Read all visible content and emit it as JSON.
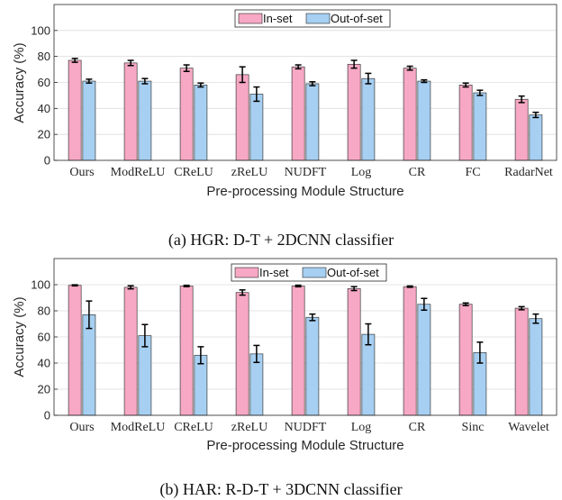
{
  "chart_data": [
    {
      "type": "bar",
      "caption": "(a) HGR: D-T + 2DCNN classifier",
      "xlabel": "Pre-processing Module Structure",
      "ylabel": "Accuracy (%)",
      "ylim": [
        0,
        120
      ],
      "yticks": [
        0,
        20,
        40,
        60,
        80,
        100
      ],
      "grid": true,
      "legend_position": "top-right",
      "categories": [
        "Ours",
        "ModReLU",
        "CReLU",
        "zReLU",
        "NUDFT",
        "Log",
        "CR",
        "FC",
        "RadarNet"
      ],
      "series": [
        {
          "name": "In-set",
          "color": "#f7a8c4",
          "values": [
            77,
            75,
            71,
            66,
            72,
            74,
            71,
            58,
            47
          ],
          "errors": [
            1.5,
            2,
            2.5,
            6,
            1.5,
            3,
            1.5,
            1.5,
            2.5
          ]
        },
        {
          "name": "Out-of-set",
          "color": "#a6cff2",
          "values": [
            61,
            61,
            58,
            51,
            59,
            63,
            61,
            52,
            35
          ],
          "errors": [
            1.5,
            2,
            1.5,
            5.5,
            1.5,
            4,
            1,
            2,
            2
          ]
        }
      ]
    },
    {
      "type": "bar",
      "caption": "(b) HAR: R-D-T + 3DCNN classifier",
      "xlabel": "Pre-processing Module Structure",
      "ylabel": "Accuracy (%)",
      "ylim": [
        0,
        120
      ],
      "yticks": [
        0,
        20,
        40,
        60,
        80,
        100
      ],
      "grid": true,
      "legend_position": "top-center",
      "categories": [
        "Ours",
        "ModReLU",
        "CReLU",
        "zReLU",
        "NUDFT",
        "Log",
        "CR",
        "Sinc",
        "Wavelet"
      ],
      "series": [
        {
          "name": "In-set",
          "color": "#f7a8c4",
          "values": [
            99.5,
            98,
            99,
            94,
            99,
            97,
            98.5,
            85,
            82
          ],
          "errors": [
            0.4,
            1.2,
            0.5,
            2,
            0.6,
            1.5,
            0.5,
            1,
            1.2
          ]
        },
        {
          "name": "Out-of-set",
          "color": "#a6cff2",
          "values": [
            77,
            61,
            46,
            47,
            75,
            62,
            85,
            48,
            74
          ],
          "errors": [
            10.5,
            8.5,
            6.5,
            6.5,
            2.5,
            8,
            4.5,
            8,
            3.5
          ]
        }
      ]
    }
  ]
}
